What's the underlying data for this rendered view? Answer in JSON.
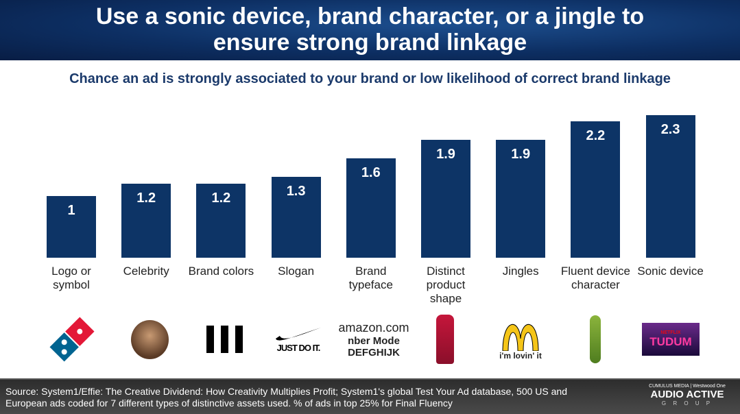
{
  "header": {
    "title_line1": "Use a sonic device, brand character, or a jingle to",
    "title_line2": "ensure strong brand linkage"
  },
  "chart_data": {
    "type": "bar",
    "title": "Chance an ad is strongly associated to your brand or low likelihood of correct brand linkage",
    "categories": [
      "Logo or symbol",
      "Celebrity",
      "Brand colors",
      "Slogan",
      "Brand typeface",
      "Distinct product shape",
      "Jingles",
      "Fluent device character",
      "Sonic device"
    ],
    "values": [
      1,
      1.2,
      1.2,
      1.3,
      1.6,
      1.9,
      1.9,
      2.2,
      2.3
    ],
    "value_labels": [
      "1",
      "1.2",
      "1.2",
      "1.3",
      "1.6",
      "1.9",
      "1.9",
      "2.2",
      "2.3"
    ],
    "bar_color": "#0d3466",
    "grid": false
  },
  "logos": {
    "nike": "JUST DO IT.",
    "amazon": "amazon.com",
    "typeface1": "nber Mode",
    "typeface2": "DEFGHIJK",
    "mcdonalds": "i'm lovin' it",
    "netflix": "NETFLIX",
    "tudum": "TUDUM"
  },
  "footer": {
    "source": "Source: System1/Effie: The Creative Dividend: How Creativity Multiplies Profit; System1's global Test Your Ad database, 500 US and European ads coded for 7 different types of distinctive assets used. % of ads in top 25% for Final Fluency",
    "brand_top": "CUMULUS MEDIA | Westwood One",
    "brand_main": "AUDIO ACTIVE",
    "brand_sub": "G R O U P"
  }
}
